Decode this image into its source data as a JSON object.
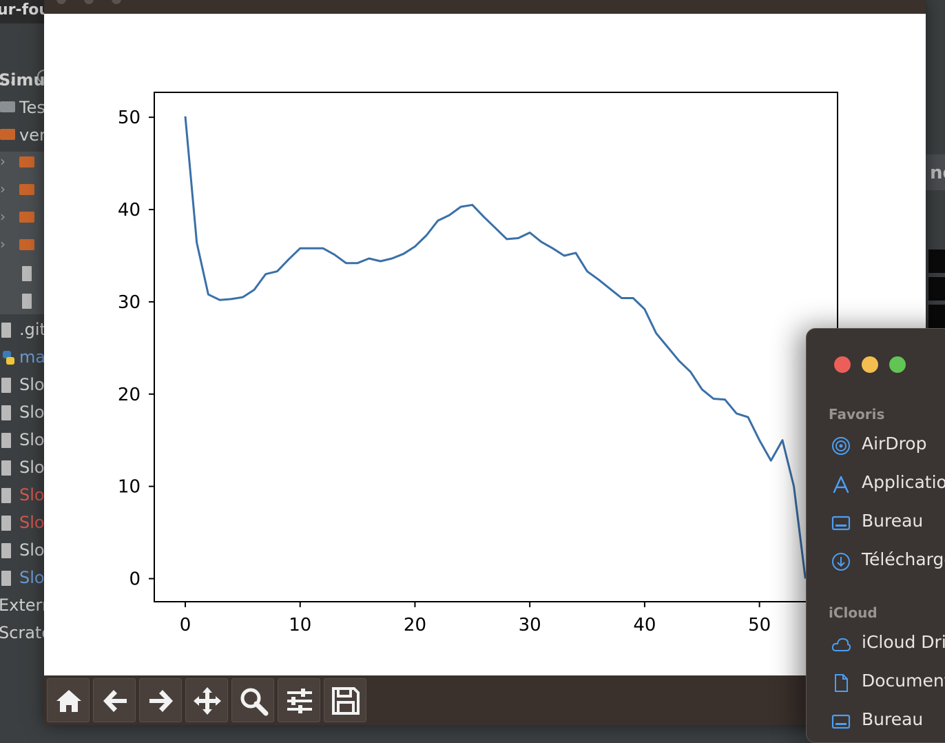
{
  "ide": {
    "project_title": "ur-fou",
    "toolbar_dots": "...",
    "tree": [
      {
        "label": "Simul",
        "kind": "bold"
      },
      {
        "label": "Tes",
        "kind": "folder"
      },
      {
        "label": "ver",
        "kind": "folder-orange"
      },
      {
        "label": "",
        "kind": "folder-orange-child"
      },
      {
        "label": "",
        "kind": "folder-orange-child"
      },
      {
        "label": "",
        "kind": "folder-orange-child"
      },
      {
        "label": "",
        "kind": "folder-orange-child"
      },
      {
        "label": "",
        "kind": "file-child"
      },
      {
        "label": "",
        "kind": "file-child"
      },
      {
        "label": ".git",
        "kind": "file"
      },
      {
        "label": "ma",
        "kind": "python"
      },
      {
        "label": "Slo",
        "kind": "file"
      },
      {
        "label": "Slo",
        "kind": "file"
      },
      {
        "label": "Slo",
        "kind": "file"
      },
      {
        "label": "Slo",
        "kind": "file"
      },
      {
        "label": "Slo",
        "kind": "file-red"
      },
      {
        "label": "Slo",
        "kind": "file-red"
      },
      {
        "label": "Slo",
        "kind": "file"
      },
      {
        "label": "Slo",
        "kind": "file-blue"
      },
      {
        "label": "Extern",
        "kind": "plain"
      },
      {
        "label": "Scrato",
        "kind": "plain"
      }
    ],
    "right_fragment": "nd"
  },
  "plot_window": {
    "title": "",
    "toolbar": [
      {
        "name": "home",
        "icon": "home-icon"
      },
      {
        "name": "back",
        "icon": "arrow-left-icon"
      },
      {
        "name": "forward",
        "icon": "arrow-right-icon"
      },
      {
        "name": "pan",
        "icon": "move-icon"
      },
      {
        "name": "zoom",
        "icon": "zoom-icon"
      },
      {
        "name": "configure",
        "icon": "sliders-icon"
      },
      {
        "name": "save",
        "icon": "save-icon"
      }
    ]
  },
  "chart_data": {
    "type": "line",
    "title": "",
    "xlabel": "",
    "ylabel": "",
    "xlim": [
      -2.7,
      56.8
    ],
    "ylim": [
      -2.5,
      52.7
    ],
    "xticks": [
      0,
      10,
      20,
      30,
      40,
      50
    ],
    "yticks": [
      0,
      10,
      20,
      30,
      40,
      50
    ],
    "grid": false,
    "series": [
      {
        "color": "#3a70a8",
        "x": [
          0,
          1,
          2,
          3,
          4,
          5,
          6,
          7,
          8,
          9,
          10,
          11,
          12,
          13,
          14,
          15,
          16,
          17,
          18,
          19,
          20,
          21,
          22,
          23,
          24,
          25,
          26,
          27,
          28,
          29,
          30,
          31,
          32,
          33,
          34,
          35,
          36,
          37,
          38,
          39,
          40,
          41,
          42,
          43,
          44,
          45,
          46,
          47,
          48,
          49,
          50,
          51,
          52,
          53,
          54
        ],
        "values": [
          50.1,
          36.4,
          30.8,
          30.2,
          30.3,
          30.5,
          31.3,
          33.0,
          33.3,
          34.6,
          35.8,
          35.8,
          35.8,
          35.1,
          34.2,
          34.2,
          34.7,
          34.4,
          34.7,
          35.2,
          36.0,
          37.2,
          38.8,
          39.4,
          40.3,
          40.5,
          39.2,
          38.0,
          36.8,
          36.9,
          37.5,
          36.5,
          35.8,
          35.0,
          35.3,
          33.3,
          32.4,
          31.4,
          30.4,
          30.4,
          29.2,
          26.6,
          25.1,
          23.6,
          22.4,
          20.5,
          19.5,
          19.4,
          17.9,
          17.5,
          15.0,
          12.8,
          15.0,
          10.0,
          0.0
        ]
      }
    ]
  },
  "finder": {
    "lights": {
      "close": "#ec5f59",
      "minimize": "#f4bd4f",
      "zoom": "#61c454"
    },
    "favorites_header": "Favoris",
    "favorites": [
      {
        "label": "AirDrop",
        "icon": "airdrop-icon"
      },
      {
        "label": "Applications",
        "icon": "applications-icon"
      },
      {
        "label": "Bureau",
        "icon": "desktop-icon"
      },
      {
        "label": "Téléchargements",
        "icon": "downloads-icon"
      }
    ],
    "icloud_header": "iCloud",
    "icloud": [
      {
        "label": "iCloud Drive",
        "icon": "cloud-icon"
      },
      {
        "label": "Documents",
        "icon": "document-icon"
      },
      {
        "label": "Bureau",
        "icon": "desktop-icon"
      }
    ],
    "accent": "#4a9ff5"
  }
}
